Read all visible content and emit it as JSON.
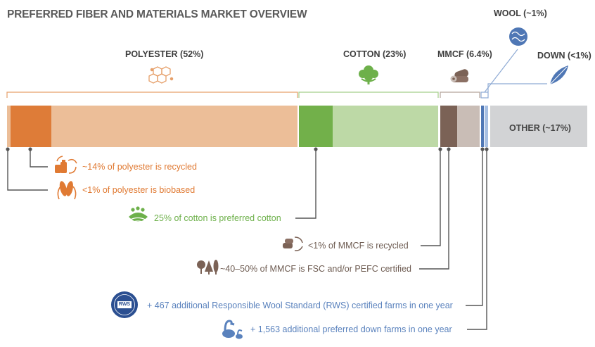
{
  "title": "PREFERRED FIBER AND MATERIALS MARKET OVERVIEW",
  "colors": {
    "polyester_light": "#ecbe98",
    "polyester_dark": "#de7c38",
    "cotton_dark": "#72b04a",
    "cotton_light": "#bdd9a6",
    "mmcf_dark": "#7b6256",
    "mmcf_light": "#c9bdb6",
    "wool": "#4f77b5",
    "down": "#a7bfe2",
    "other": "#d2d3d5"
  },
  "categories": {
    "polyester": "POLYESTER (52%)",
    "cotton": "COTTON (23%)",
    "mmcf": "MMCF (6.4%)",
    "wool": "WOOL (~1%)",
    "down": "DOWN (<1%)",
    "other": "OTHER (~17%)"
  },
  "icons": {
    "polyester": "molecule-icon",
    "cotton": "cotton-boll-icon",
    "mmcf": "log-icon",
    "wool": "wool-ball-icon",
    "down": "feather-icon",
    "recycled_polyester": "recycled-bottles-icon",
    "biobased": "corn-icon",
    "preferred_cotton": "field-icon",
    "recycled_mmcf": "recycled-wood-icon",
    "certified_mmcf": "trees-icon",
    "rws": "rws-badge-icon",
    "preferred_down": "geese-icon"
  },
  "notes": {
    "recycled_polyester": "~14% of polyester is recycled",
    "biobased_polyester": "<1% of polyester is biobased",
    "preferred_cotton": "25% of cotton is preferred cotton",
    "recycled_mmcf": "<1% of MMCF is recycled",
    "certified_mmcf": "~40–50% of MMCF is FSC and/or PEFC certified",
    "rws_farms": "+ 467 additional Responsible Wool Standard (RWS) certified farms in one year",
    "down_farms": "+ 1,563 additional preferred down farms in one year"
  },
  "badge": {
    "top": "RESPONSIBLE WOOL",
    "middle": "RWS",
    "bottom": "STANDARD"
  }
}
